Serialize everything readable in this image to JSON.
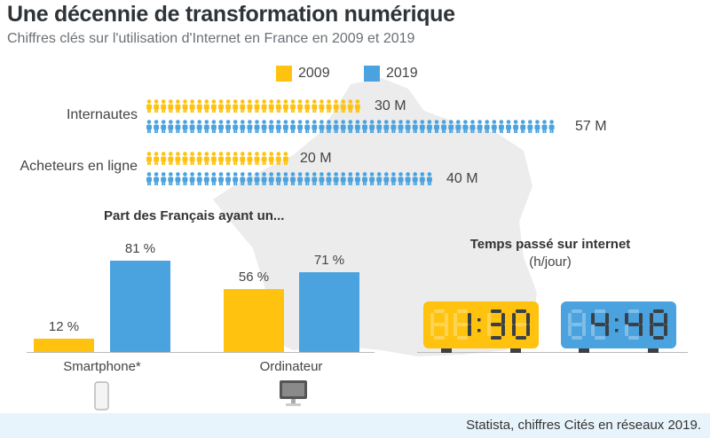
{
  "title": "Une décennie de transformation numérique",
  "subtitle": "Chiffres clés sur l'utilisation d'Internet en France en 2009 et 2019",
  "colors": {
    "y2009": "#FFC20E",
    "y2019": "#4AA3DF",
    "map": "#ededed",
    "digit": "#3b4046"
  },
  "legend": [
    {
      "label": "2009",
      "color": "#FFC20E"
    },
    {
      "label": "2019",
      "color": "#4AA3DF"
    }
  ],
  "chart_data": [
    {
      "type": "pictogram",
      "unit": "1 icône = 1 M",
      "categories": [
        "Internautes",
        "Acheteurs en ligne"
      ],
      "series": [
        {
          "name": "2009",
          "values": [
            30,
            20
          ],
          "labels": [
            "30 M",
            "20 M"
          ]
        },
        {
          "name": "2019",
          "values": [
            57,
            40
          ],
          "labels": [
            "57 M",
            "40 M"
          ]
        }
      ]
    },
    {
      "type": "bar",
      "title": "Part des Français ayant un...",
      "categories": [
        "Smartphone*",
        "Ordinateur"
      ],
      "series": [
        {
          "name": "2009",
          "values": [
            12,
            56
          ],
          "labels": [
            "12 %",
            "56 %"
          ]
        },
        {
          "name": "2019",
          "values": [
            81,
            71
          ],
          "labels": [
            "81 %",
            "71 %"
          ]
        }
      ],
      "ylim": [
        0,
        100
      ]
    },
    {
      "type": "digital-clock",
      "title": "Temps passé sur internet",
      "subtitle": "(h/jour)",
      "series": [
        {
          "name": "2009",
          "value": "1:30"
        },
        {
          "name": "2019",
          "value": "4:48"
        }
      ]
    }
  ],
  "icons": {
    "smartphone": "smartphone-icon",
    "computer": "computer-monitor-icon"
  },
  "footer": "Statista, chiffres Cités en réseaux 2019."
}
